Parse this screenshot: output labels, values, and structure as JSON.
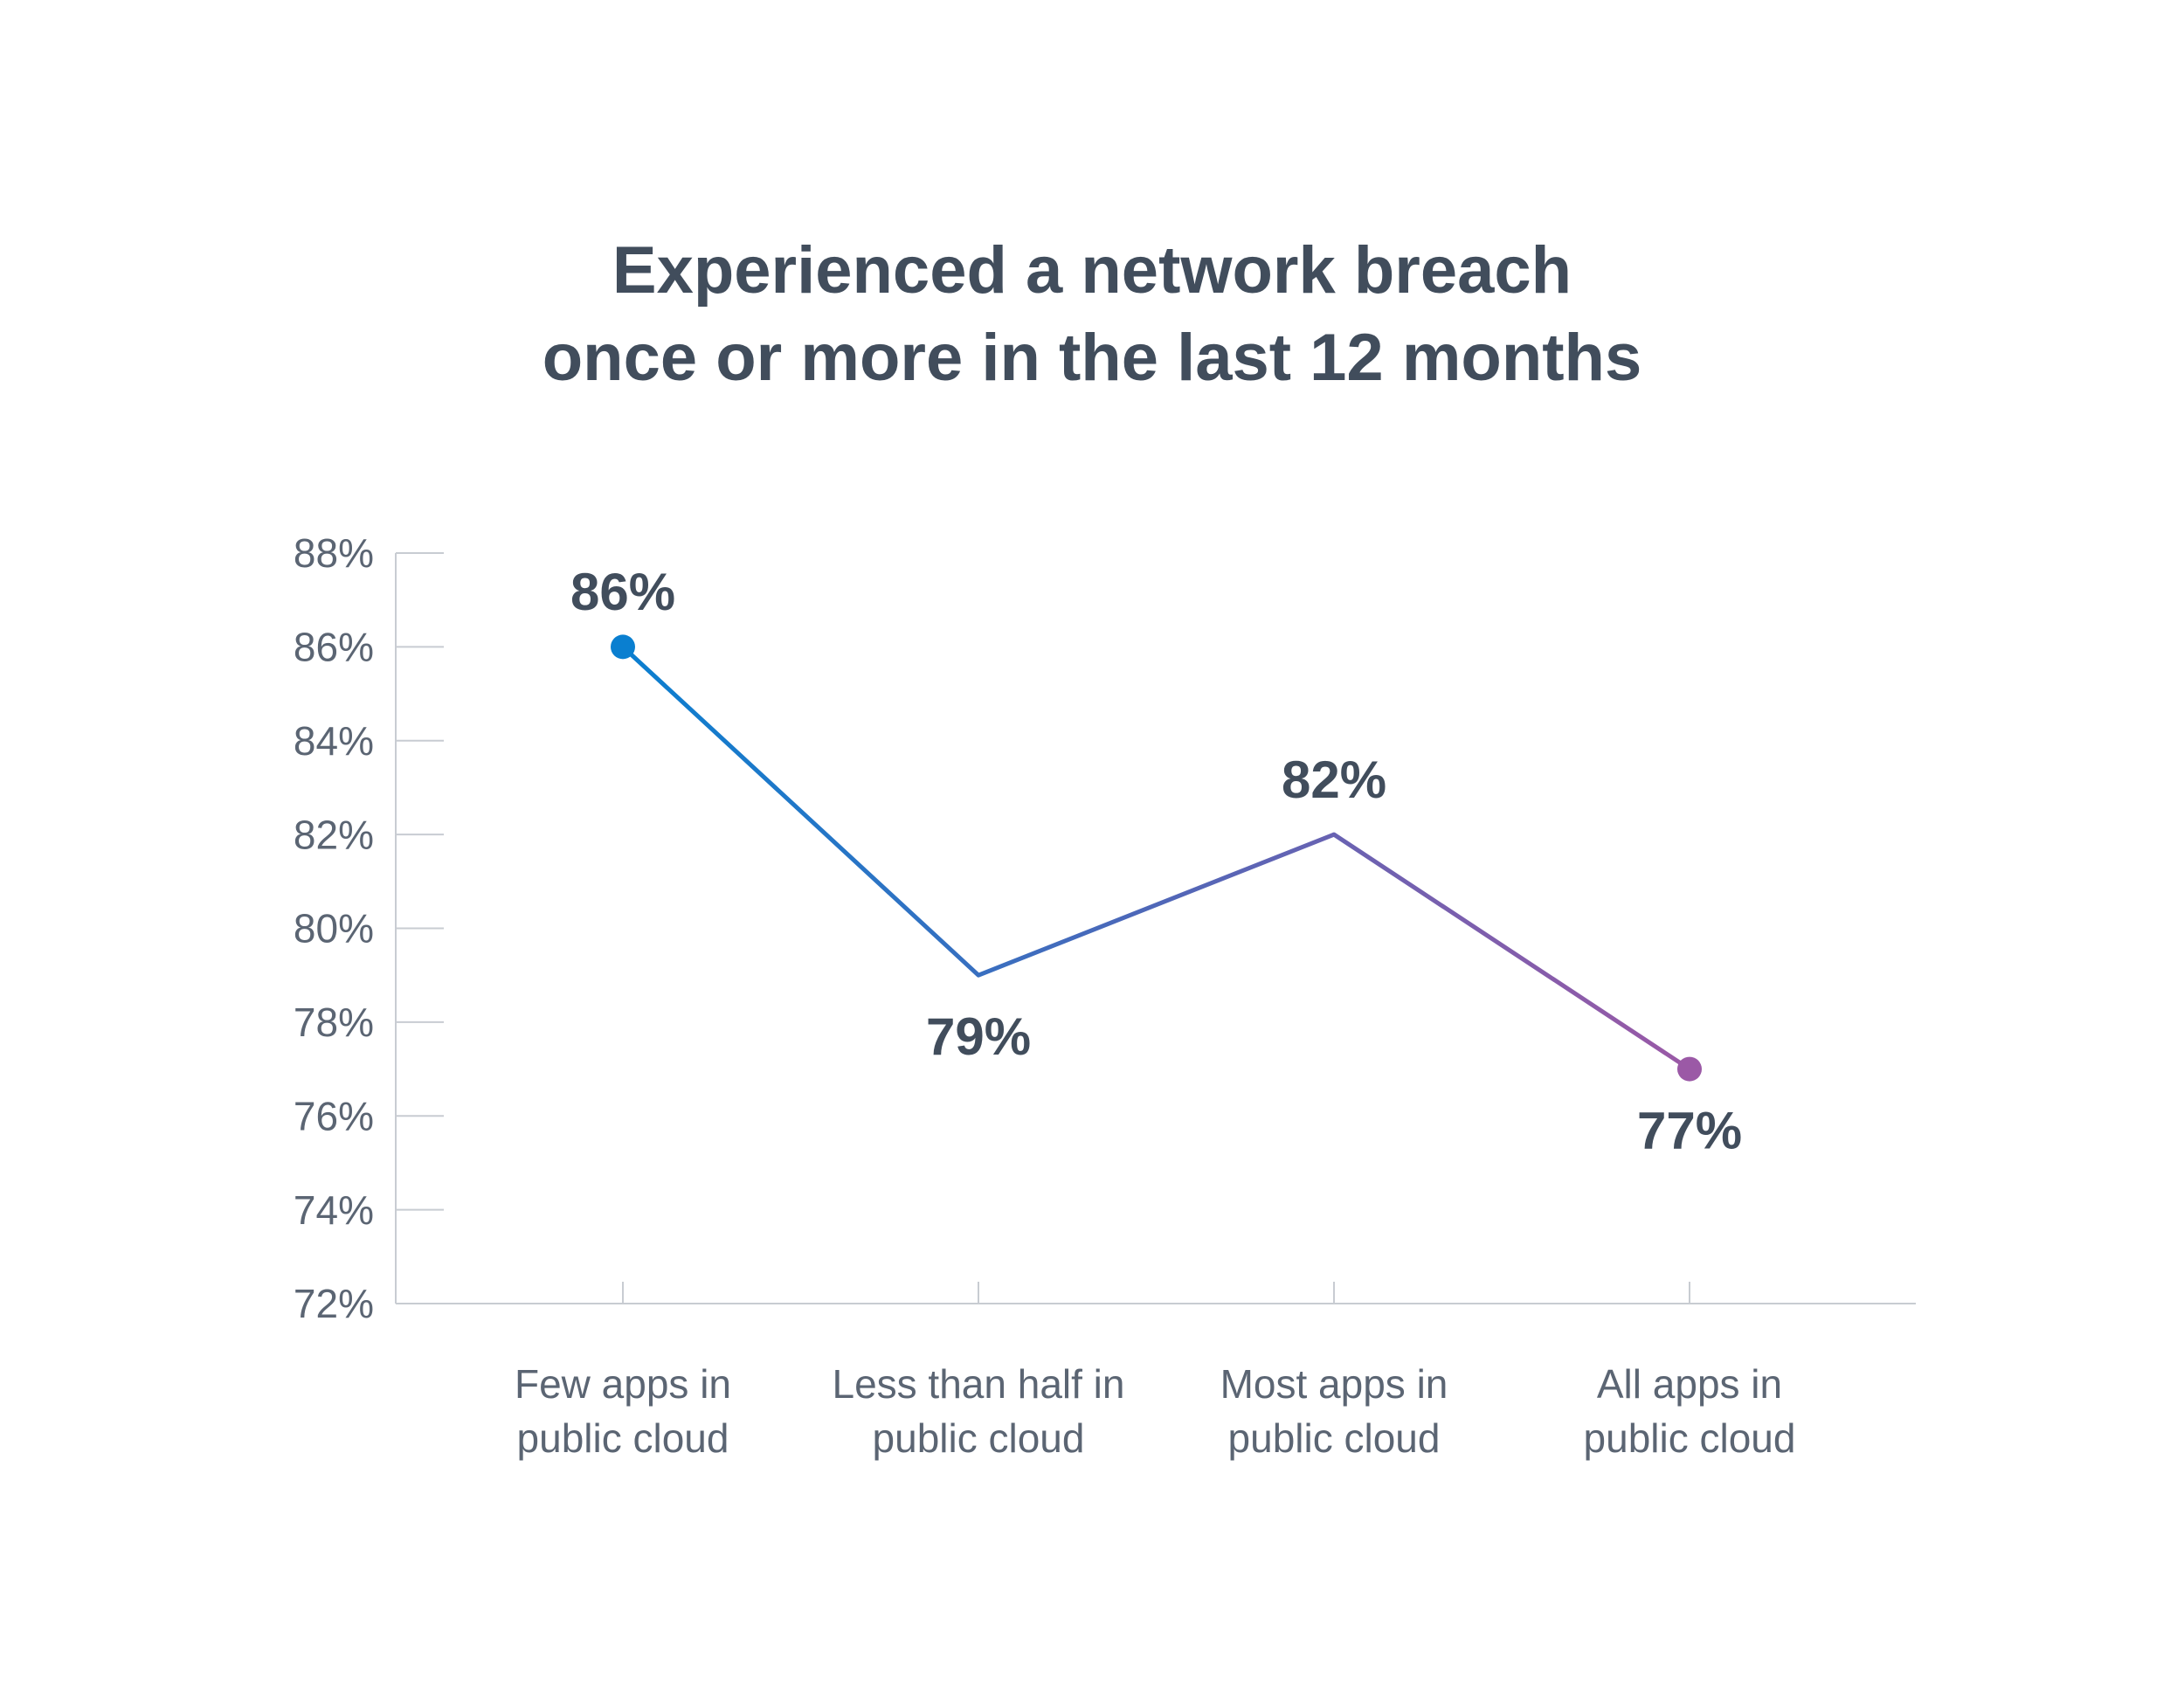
{
  "chart_data": {
    "type": "line",
    "title_lines": [
      "Experienced a network breach",
      "once or more in the last 12 months"
    ],
    "categories": [
      [
        "Few apps in",
        "public cloud"
      ],
      [
        "Less than half in",
        "public cloud"
      ],
      [
        "Most apps in",
        "public cloud"
      ],
      [
        "All apps in",
        "public cloud"
      ]
    ],
    "values": [
      86,
      79,
      82,
      77
    ],
    "value_labels": [
      "86%",
      "79%",
      "82%",
      "77%"
    ],
    "label_positions": [
      "above",
      "below",
      "above",
      "below"
    ],
    "ylim": [
      72,
      88
    ],
    "yticks": [
      72,
      74,
      76,
      78,
      80,
      82,
      84,
      86,
      88
    ],
    "ytick_labels": [
      "72%",
      "74%",
      "76%",
      "78%",
      "80%",
      "82%",
      "84%",
      "86%",
      "88%"
    ],
    "xlabel": "",
    "ylabel": "",
    "grid": false,
    "legend": "none"
  },
  "colors": {
    "text": "#414d5c",
    "axis_text": "#5b6573",
    "axis_line": "#c8ccd2",
    "gradient_start": "#0a7fd0",
    "gradient_mid": "#4f67b8",
    "gradient_end": "#9b59a6"
  }
}
